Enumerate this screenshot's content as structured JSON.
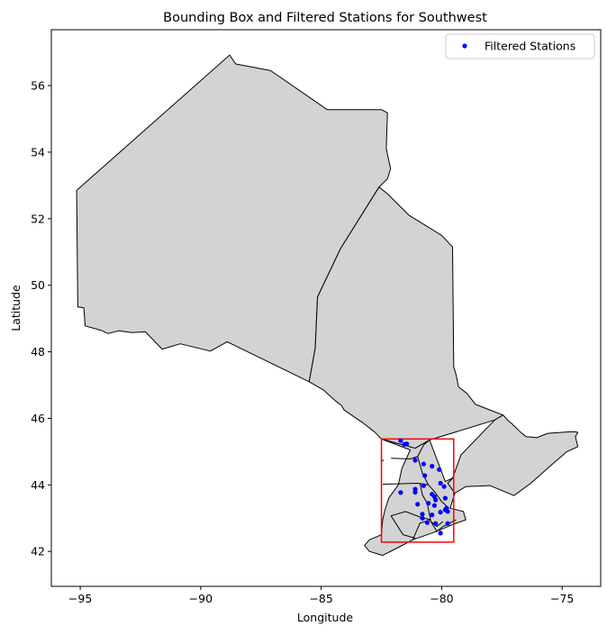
{
  "chart_data": {
    "type": "scatter",
    "title": "Bounding Box and Filtered Stations for Southwest",
    "xlabel": "Longitude",
    "ylabel": "Latitude",
    "xlim": [
      -96.2,
      -73.4
    ],
    "ylim": [
      40.95,
      57.68
    ],
    "xticks": [
      -95,
      -90,
      -85,
      -80,
      -75
    ],
    "xtick_labels": [
      "−95",
      "−90",
      "−85",
      "−80",
      "−75"
    ],
    "yticks": [
      42,
      44,
      46,
      48,
      50,
      52,
      54,
      56
    ],
    "ytick_labels": [
      "42",
      "44",
      "46",
      "48",
      "50",
      "52",
      "54",
      "56"
    ],
    "grid": false,
    "legend_position": "top-right",
    "colors": {
      "region_fill": "#d3d3d3",
      "region_edge": "#000000",
      "bbox": "#ff0000",
      "stations": "#0000ff"
    },
    "series": [
      {
        "name": "Filtered Stations",
        "points": [
          [
            -81.7,
            45.33
          ],
          [
            -81.55,
            45.22
          ],
          [
            -81.45,
            45.23
          ],
          [
            -81.1,
            44.74
          ],
          [
            -80.75,
            44.63
          ],
          [
            -80.4,
            44.56
          ],
          [
            -80.1,
            44.46
          ],
          [
            -80.7,
            44.28
          ],
          [
            -80.75,
            43.98
          ],
          [
            -80.05,
            44.05
          ],
          [
            -79.9,
            43.95
          ],
          [
            -81.1,
            43.87
          ],
          [
            -81.1,
            43.78
          ],
          [
            -81.7,
            43.77
          ],
          [
            -80.4,
            43.72
          ],
          [
            -80.3,
            43.65
          ],
          [
            -80.25,
            43.55
          ],
          [
            -80.55,
            43.45
          ],
          [
            -79.85,
            43.6
          ],
          [
            -81.0,
            43.42
          ],
          [
            -80.3,
            43.38
          ],
          [
            -79.8,
            43.3
          ],
          [
            -79.85,
            43.25
          ],
          [
            -79.75,
            43.2
          ],
          [
            -80.8,
            43.12
          ],
          [
            -80.4,
            43.1
          ],
          [
            -80.05,
            43.18
          ],
          [
            -80.8,
            43.0
          ],
          [
            -80.6,
            42.87
          ],
          [
            -80.25,
            42.84
          ],
          [
            -79.75,
            42.84
          ],
          [
            -80.05,
            42.55
          ]
        ]
      }
    ],
    "bounding_box": {
      "lon_min": -82.5,
      "lon_max": -79.5,
      "lat_min": 42.28,
      "lat_max": 45.38
    },
    "regions": [
      {
        "name": "north",
        "coords": [
          [
            -95.15,
            52.85
          ],
          [
            -95.1,
            49.35
          ],
          [
            -94.85,
            49.32
          ],
          [
            -94.8,
            48.78
          ],
          [
            -94.15,
            48.65
          ],
          [
            -93.85,
            48.55
          ],
          [
            -93.4,
            48.63
          ],
          [
            -92.85,
            48.58
          ],
          [
            -92.3,
            48.6
          ],
          [
            -91.6,
            48.08
          ],
          [
            -90.85,
            48.24
          ],
          [
            -89.6,
            48.02
          ],
          [
            -88.9,
            48.3
          ],
          [
            -85.5,
            47.1
          ],
          [
            -85.25,
            48.1
          ],
          [
            -85.15,
            49.65
          ],
          [
            -84.2,
            51.1
          ],
          [
            -82.6,
            52.95
          ],
          [
            -82.25,
            53.2
          ],
          [
            -82.12,
            53.5
          ],
          [
            -82.3,
            54.1
          ],
          [
            -82.25,
            55.18
          ],
          [
            -82.5,
            55.28
          ],
          [
            -84.75,
            55.28
          ],
          [
            -87.1,
            56.45
          ],
          [
            -88.55,
            56.65
          ],
          [
            -88.8,
            56.92
          ]
        ]
      },
      {
        "name": "central",
        "coords": [
          [
            -85.5,
            47.1
          ],
          [
            -85.25,
            48.1
          ],
          [
            -85.15,
            49.65
          ],
          [
            -84.2,
            51.1
          ],
          [
            -82.6,
            52.95
          ],
          [
            -82.25,
            52.75
          ],
          [
            -81.35,
            52.1
          ],
          [
            -80.0,
            51.5
          ],
          [
            -79.55,
            51.15
          ],
          [
            -79.5,
            47.55
          ],
          [
            -79.4,
            47.3
          ],
          [
            -79.3,
            46.95
          ],
          [
            -78.95,
            46.75
          ],
          [
            -78.6,
            46.42
          ],
          [
            -78.1,
            46.28
          ],
          [
            -77.45,
            46.1
          ],
          [
            -77.8,
            45.95
          ],
          [
            -80.5,
            45.35
          ],
          [
            -81.1,
            45.1
          ],
          [
            -82.5,
            45.38
          ],
          [
            -82.8,
            45.6
          ],
          [
            -83.3,
            45.88
          ],
          [
            -84.05,
            46.25
          ],
          [
            -84.15,
            46.38
          ],
          [
            -84.4,
            46.52
          ],
          [
            -84.9,
            46.85
          ]
        ]
      },
      {
        "name": "east",
        "coords": [
          [
            -77.45,
            46.1
          ],
          [
            -77.8,
            45.95
          ],
          [
            -79.2,
            44.9
          ],
          [
            -79.55,
            44.2
          ],
          [
            -79.75,
            44.05
          ],
          [
            -79.45,
            43.75
          ],
          [
            -79.0,
            43.95
          ],
          [
            -78.0,
            43.98
          ],
          [
            -77.0,
            43.68
          ],
          [
            -76.3,
            44.05
          ],
          [
            -75.6,
            44.5
          ],
          [
            -74.8,
            45.0
          ],
          [
            -74.35,
            45.15
          ],
          [
            -74.45,
            45.45
          ],
          [
            -74.35,
            45.58
          ],
          [
            -74.5,
            45.6
          ],
          [
            -75.0,
            45.58
          ],
          [
            -75.6,
            45.55
          ],
          [
            -76.05,
            45.42
          ],
          [
            -76.5,
            45.45
          ],
          [
            -76.75,
            45.6
          ],
          [
            -77.1,
            45.85
          ],
          [
            -77.2,
            45.9
          ]
        ]
      },
      {
        "name": "southwest",
        "coords": [
          [
            -82.5,
            45.38
          ],
          [
            -81.1,
            45.1
          ],
          [
            -80.5,
            45.35
          ],
          [
            -79.85,
            44.1
          ],
          [
            -79.55,
            44.2
          ],
          [
            -79.75,
            44.05
          ],
          [
            -79.45,
            43.75
          ],
          [
            -79.65,
            43.3
          ],
          [
            -79.1,
            43.2
          ],
          [
            -79.0,
            42.95
          ],
          [
            -79.5,
            42.82
          ],
          [
            -80.3,
            42.58
          ],
          [
            -81.2,
            42.35
          ],
          [
            -81.85,
            42.1
          ],
          [
            -82.45,
            41.88
          ],
          [
            -83.0,
            42.0
          ],
          [
            -83.2,
            42.18
          ],
          [
            -83.0,
            42.35
          ],
          [
            -82.5,
            42.5
          ],
          [
            -82.45,
            42.95
          ],
          [
            -82.35,
            43.25
          ],
          [
            -82.2,
            43.6
          ],
          [
            -81.8,
            44.0
          ],
          [
            -81.65,
            44.5
          ],
          [
            -81.3,
            45.05
          ]
        ]
      }
    ],
    "boundaries": [
      [
        [
          -82.1,
          44.8
        ],
        [
          -81.3,
          44.78
        ],
        [
          -81.0,
          44.85
        ],
        [
          -80.75,
          45.2
        ],
        [
          -80.5,
          45.35
        ]
      ],
      [
        [
          -82.4,
          44.75
        ],
        [
          -82.5,
          44.7
        ]
      ],
      [
        [
          -81.0,
          44.85
        ],
        [
          -80.8,
          44.35
        ],
        [
          -80.55,
          44.0
        ],
        [
          -80.3,
          43.8
        ],
        [
          -80.0,
          43.5
        ],
        [
          -79.7,
          43.3
        ]
      ],
      [
        [
          -82.45,
          44.02
        ],
        [
          -81.0,
          44.05
        ],
        [
          -80.55,
          44.0
        ]
      ],
      [
        [
          -80.9,
          44.05
        ],
        [
          -80.8,
          43.7
        ],
        [
          -80.6,
          43.45
        ],
        [
          -80.45,
          42.9
        ],
        [
          -80.2,
          42.75
        ],
        [
          -79.95,
          42.9
        ]
      ],
      [
        [
          -82.1,
          43.07
        ],
        [
          -81.5,
          43.2
        ],
        [
          -80.85,
          43.02
        ],
        [
          -80.45,
          42.95
        ]
      ],
      [
        [
          -82.1,
          43.07
        ],
        [
          -81.6,
          42.5
        ],
        [
          -81.1,
          42.4
        ]
      ],
      [
        [
          -81.2,
          42.35
        ],
        [
          -80.9,
          42.85
        ],
        [
          -80.45,
          42.95
        ]
      ],
      [
        [
          -80.45,
          42.9
        ],
        [
          -80.2,
          42.6
        ],
        [
          -79.95,
          42.75
        ],
        [
          -79.4,
          42.95
        ]
      ]
    ]
  }
}
